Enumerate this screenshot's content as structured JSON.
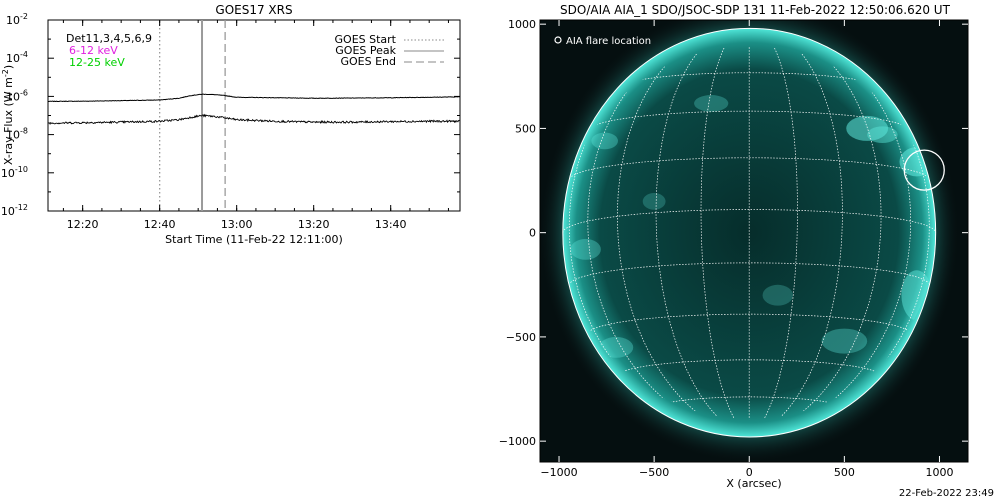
{
  "colors": {
    "background": "#ffffff",
    "axis": "#000000",
    "low_channel": "#000000",
    "high_channel": "#000000",
    "det_6_12": "#e020e0",
    "det_12_25": "#00d000",
    "marker": "#aaaaaa",
    "disk_dark": "#042626",
    "disk_mid": "#0a5a55",
    "limb": "#4fe6d8",
    "grid_line": "#ffffff"
  },
  "footer": {
    "timestamp": "22-Feb-2022 23:49"
  },
  "chart_data": [
    {
      "type": "line",
      "title": "GOES17 XRS",
      "xlabel": "Start Time (11-Feb-22 12:11:00)",
      "ylabel_main": "X-ray Flux (W m",
      "ylabel_unit_exp": "-2",
      "ylabel_close": ")",
      "xlim": [
        "12:11",
        "13:58"
      ],
      "xticks": [
        "12:20",
        "12:40",
        "13:00",
        "13:20",
        "13:40"
      ],
      "ylim": [
        1e-12,
        0.01
      ],
      "yscale": "log",
      "ytick_base": "10",
      "ytick_exponents": [
        "-2",
        "-4",
        "-6",
        "-8",
        "-10",
        "-12"
      ],
      "yticks": [
        0.01,
        0.0001,
        1e-06,
        1e-08,
        1e-10,
        1e-12
      ],
      "grid": false,
      "detector_legend": [
        {
          "text": "Det11,3,4,5,6,9",
          "color": "#000000"
        },
        {
          "text": "6-12 keV",
          "color": "#e020e0"
        },
        {
          "text": "12-25 keV",
          "color": "#00d000"
        }
      ],
      "marker_legend": [
        {
          "text": "GOES Start",
          "style": "dotted"
        },
        {
          "text": "GOES Peak",
          "style": "solid"
        },
        {
          "text": "GOES End",
          "style": "dashed"
        }
      ],
      "markers": {
        "start": "12:40",
        "peak": "12:51",
        "end": "12:57"
      },
      "series": [
        {
          "x": [
            "12:11",
            "12:20",
            "12:30",
            "12:40",
            "12:45",
            "12:48",
            "12:51",
            "12:54",
            "12:57",
            "13:00",
            "13:10",
            "13:20",
            "13:30",
            "13:40",
            "13:50",
            "13:58"
          ],
          "values": [
            5.5e-07,
            5.6e-07,
            6e-07,
            6.5e-07,
            8e-07,
            1.1e-06,
            1.3e-06,
            1.25e-06,
            1.1e-06,
            9e-07,
            8.5e-07,
            8e-07,
            8.2e-07,
            8.5e-07,
            9e-07,
            9.5e-07
          ]
        },
        {
          "x": [
            "12:11",
            "12:20",
            "12:30",
            "12:40",
            "12:45",
            "12:48",
            "12:51",
            "12:54",
            "12:57",
            "13:00",
            "13:10",
            "13:20",
            "13:30",
            "13:40",
            "13:50",
            "13:58"
          ],
          "values": [
            4e-08,
            4.2e-08,
            4.5e-08,
            5e-08,
            6e-08,
            8e-08,
            1e-07,
            9e-08,
            7.5e-08,
            6e-08,
            5e-08,
            4.5e-08,
            4.5e-08,
            4.8e-08,
            5e-08,
            5e-08
          ]
        }
      ]
    },
    {
      "type": "scatter",
      "title": "SDO/AIA AIA_1 SDO/JSOC-SDP 131 11-Feb-2022 12:50:06.620 UT",
      "xlabel": "X (arcsec)",
      "ylabel": "",
      "xlim": [
        -1100,
        1150
      ],
      "ylim": [
        -1100,
        1020
      ],
      "xticks": [
        -1000,
        -500,
        0,
        500,
        1000
      ],
      "yticks": [
        -1000,
        -500,
        0,
        500,
        1000
      ],
      "solar_radius": 980,
      "grid_spacing_deg": 15,
      "legend": "AIA flare location",
      "flare_location": {
        "x": 920,
        "y": 300
      }
    }
  ]
}
